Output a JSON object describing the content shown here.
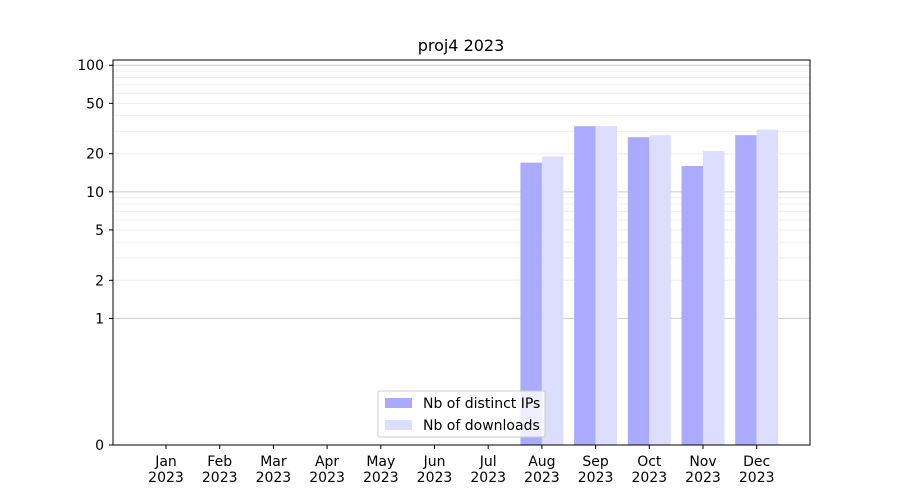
{
  "chart_data": {
    "type": "bar",
    "title": "proj4 2023",
    "xlabel": "",
    "ylabel": "",
    "yscale": "symlog",
    "ylim": [
      0,
      110
    ],
    "yticks": [
      0,
      1,
      2,
      5,
      10,
      20,
      50,
      100
    ],
    "ytick_labels": [
      "0",
      "1",
      "2",
      "5",
      "10",
      "20",
      "50",
      "100"
    ],
    "categories": [
      "Jan\n2023",
      "Feb\n2023",
      "Mar\n2023",
      "Apr\n2023",
      "May\n2023",
      "Jun\n2023",
      "Jul\n2023",
      "Aug\n2023",
      "Sep\n2023",
      "Oct\n2023",
      "Nov\n2023",
      "Dec\n2023"
    ],
    "series": [
      {
        "name": "Nb of distinct IPs",
        "color": "#aaaaff",
        "values": [
          0,
          0,
          0,
          0,
          0,
          0,
          0,
          17,
          33,
          27,
          16,
          28
        ]
      },
      {
        "name": "Nb of downloads",
        "color": "#ddddff",
        "values": [
          0,
          0,
          0,
          0,
          0,
          0,
          0,
          19,
          33,
          28,
          21,
          31
        ]
      }
    ],
    "grid": true,
    "legend_position": "lower-center"
  }
}
